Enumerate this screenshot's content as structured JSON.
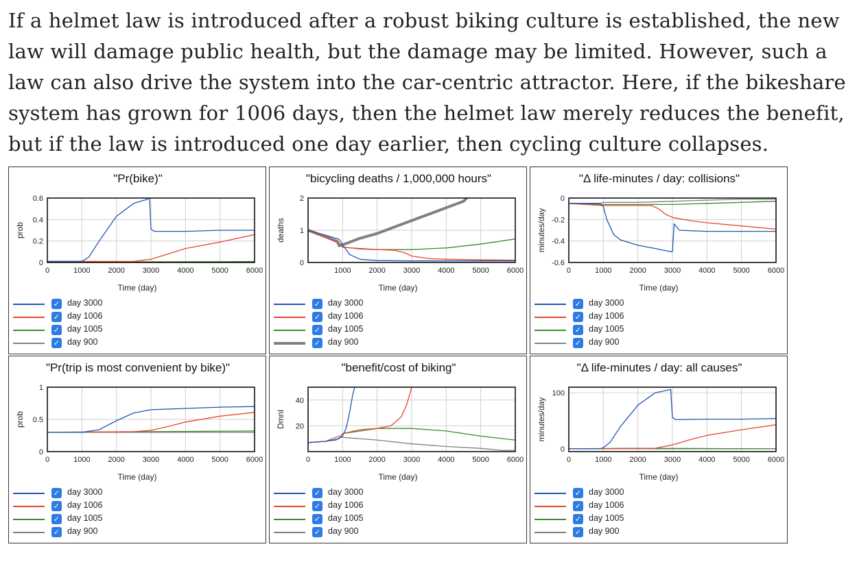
{
  "intro": {
    "lines": [
      "If a helmet law is introduced after a robust biking culture is established, the new",
      "law will damage public health, but the damage may be limited. However, such a",
      "law can also drive the system into the car-centric attractor. Here, if the bikeshare",
      "system has grown for 1006 days, then the helmet law merely reduces the benefit,",
      "but if the law is introduced one day earlier, then cycling culture collapses."
    ]
  },
  "legend": [
    {
      "label": "day 3000",
      "color": "#2255b0"
    },
    {
      "label": "day 1006",
      "color": "#e8452c"
    },
    {
      "label": "day 1005",
      "color": "#3a8a2e"
    },
    {
      "label": "day 900",
      "color": "#808080"
    }
  ],
  "checkmark": "✓",
  "chart_data": [
    {
      "type": "line",
      "title": "\"Pr(bike)\"",
      "xlabel": "Time (day)",
      "ylabel": "prob",
      "xlim": [
        0,
        6000
      ],
      "ylim": [
        0,
        0.6
      ],
      "xticks": [
        0,
        1000,
        2000,
        3000,
        4000,
        5000,
        6000
      ],
      "yticks": [
        0,
        0.2,
        0.4,
        0.6
      ],
      "ytick_labels": [
        "0",
        "0.2",
        "0.4",
        "0.6"
      ],
      "series": [
        {
          "name": "day 3000",
          "x": [
            0,
            1000,
            1200,
            1500,
            2000,
            2500,
            2900,
            2960,
            3000,
            3100,
            4000,
            5000,
            6000
          ],
          "y": [
            0.01,
            0.01,
            0.05,
            0.2,
            0.43,
            0.55,
            0.59,
            0.6,
            0.31,
            0.29,
            0.29,
            0.3,
            0.3
          ]
        },
        {
          "name": "day 1006",
          "x": [
            0,
            2500,
            3000,
            3500,
            4000,
            5000,
            6000
          ],
          "y": [
            0.01,
            0.01,
            0.03,
            0.08,
            0.13,
            0.19,
            0.26
          ]
        },
        {
          "name": "day 1005",
          "x": [
            0,
            6000
          ],
          "y": [
            0.005,
            0.008
          ]
        },
        {
          "name": "day 900",
          "x": [
            0,
            6000
          ],
          "y": [
            0.003,
            0.004
          ]
        }
      ]
    },
    {
      "type": "line",
      "title": "\"bicycling deaths / 1,000,000 hours\"",
      "xlabel": "Time (day)",
      "ylabel": "deaths",
      "xlim": [
        0,
        6000
      ],
      "ylim": [
        0,
        2
      ],
      "xticks": [
        1000,
        2000,
        3000,
        4000,
        5000,
        6000
      ],
      "yticks": [
        0,
        1,
        2
      ],
      "ytick_labels": [
        "0",
        "1",
        "2"
      ],
      "series": [
        {
          "name": "day 3000",
          "x": [
            0,
            500,
            900,
            1000,
            1200,
            1500,
            2000,
            3000,
            4000,
            6000
          ],
          "y": [
            1.0,
            0.85,
            0.72,
            0.55,
            0.25,
            0.1,
            0.06,
            0.05,
            0.05,
            0.05
          ]
        },
        {
          "name": "day 1006",
          "x": [
            0,
            900,
            1000,
            1500,
            2000,
            2500,
            2800,
            3000,
            3500,
            4000,
            5000,
            6000
          ],
          "y": [
            1.0,
            0.6,
            0.48,
            0.42,
            0.4,
            0.38,
            0.3,
            0.2,
            0.12,
            0.1,
            0.08,
            0.07
          ]
        },
        {
          "name": "day 1005",
          "x": [
            0,
            900,
            1000,
            2000,
            3000,
            4000,
            5000,
            6000
          ],
          "y": [
            1.0,
            0.6,
            0.47,
            0.4,
            0.4,
            0.45,
            0.57,
            0.73
          ]
        },
        {
          "name": "day 900",
          "x": [
            0,
            500,
            850,
            900,
            1000,
            1500,
            2000,
            2500,
            3000,
            3500,
            4000,
            4500,
            4600
          ],
          "y": [
            1.0,
            0.8,
            0.65,
            0.52,
            0.55,
            0.75,
            0.9,
            1.1,
            1.3,
            1.5,
            1.7,
            1.9,
            2.0
          ]
        }
      ]
    },
    {
      "type": "line",
      "title": "\"Δ life-minutes / day: collisions\"",
      "xlabel": "Time (day)",
      "ylabel": "minutes/day",
      "xlim": [
        0,
        6000
      ],
      "ylim": [
        -0.6,
        0
      ],
      "xticks": [
        0,
        1000,
        2000,
        3000,
        4000,
        5000,
        6000
      ],
      "yticks": [
        -0.6,
        -0.4,
        -0.2,
        0
      ],
      "ytick_labels": [
        "-0.6",
        "-0.4",
        "-0.2",
        "0"
      ],
      "series": [
        {
          "name": "day 3000",
          "x": [
            0,
            900,
            1000,
            1100,
            1300,
            1500,
            2000,
            2500,
            2950,
            3000,
            3050,
            3200,
            4000,
            5000,
            6000
          ],
          "y": [
            -0.05,
            -0.05,
            -0.08,
            -0.2,
            -0.34,
            -0.39,
            -0.44,
            -0.47,
            -0.5,
            -0.5,
            -0.24,
            -0.3,
            -0.31,
            -0.31,
            -0.31
          ]
        },
        {
          "name": "day 1006",
          "x": [
            0,
            1000,
            2400,
            2600,
            2800,
            3000,
            3500,
            4000,
            5000,
            6000
          ],
          "y": [
            -0.05,
            -0.07,
            -0.07,
            -0.1,
            -0.15,
            -0.18,
            -0.21,
            -0.23,
            -0.26,
            -0.29
          ]
        },
        {
          "name": "day 1005",
          "x": [
            0,
            1000,
            2000,
            3000,
            4000,
            5000,
            6000
          ],
          "y": [
            -0.05,
            -0.06,
            -0.06,
            -0.06,
            -0.05,
            -0.04,
            -0.03
          ]
        },
        {
          "name": "day 900",
          "x": [
            0,
            900,
            1000,
            2000,
            3000,
            4000,
            5000,
            6000
          ],
          "y": [
            -0.05,
            -0.05,
            -0.04,
            -0.04,
            -0.03,
            -0.02,
            -0.01,
            -0.01
          ]
        }
      ]
    },
    {
      "type": "line",
      "title": "\"Pr(trip is most convenient by bike)\"",
      "xlabel": "Time (day)",
      "ylabel": "prob",
      "xlim": [
        0,
        6000
      ],
      "ylim": [
        0,
        1
      ],
      "xticks": [
        0,
        1000,
        2000,
        3000,
        4000,
        5000,
        6000
      ],
      "yticks": [
        0,
        0.5,
        1
      ],
      "ytick_labels": [
        "0",
        "0.5",
        "1"
      ],
      "series": [
        {
          "name": "day 3000",
          "x": [
            0,
            1000,
            1500,
            2000,
            2500,
            3000,
            4000,
            5000,
            6000
          ],
          "y": [
            0.3,
            0.3,
            0.34,
            0.48,
            0.6,
            0.65,
            0.67,
            0.69,
            0.7
          ]
        },
        {
          "name": "day 1006",
          "x": [
            0,
            2500,
            3000,
            3500,
            4000,
            5000,
            6000
          ],
          "y": [
            0.3,
            0.31,
            0.33,
            0.39,
            0.46,
            0.55,
            0.61
          ]
        },
        {
          "name": "day 1005",
          "x": [
            0,
            6000
          ],
          "y": [
            0.3,
            0.32
          ]
        },
        {
          "name": "day 900",
          "x": [
            0,
            6000
          ],
          "y": [
            0.3,
            0.3
          ]
        }
      ]
    },
    {
      "type": "line",
      "title": "\"benefit/cost of biking\"",
      "xlabel": "Time (day)",
      "ylabel": "Dmnl",
      "xlim": [
        0,
        6000
      ],
      "ylim": [
        0,
        50
      ],
      "xticks": [
        0,
        1000,
        2000,
        3000,
        4000,
        5000,
        6000
      ],
      "yticks": [
        20,
        40
      ],
      "ytick_labels": [
        "20",
        "40"
      ],
      "series": [
        {
          "name": "day 3000",
          "x": [
            0,
            500,
            800,
            1000,
            1100,
            1200,
            1300,
            1350
          ],
          "y": [
            7,
            8,
            9,
            12,
            18,
            30,
            45,
            50
          ]
        },
        {
          "name": "day 1006",
          "x": [
            0,
            500,
            900,
            1000,
            1500,
            2000,
            2400,
            2700,
            2850,
            2950,
            3000
          ],
          "y": [
            7,
            8,
            10,
            14,
            17,
            18,
            20,
            27,
            36,
            45,
            50
          ]
        },
        {
          "name": "day 1005",
          "x": [
            0,
            500,
            900,
            1000,
            2000,
            3000,
            4000,
            5000,
            6000
          ],
          "y": [
            7,
            8,
            10,
            14,
            18,
            18,
            16,
            12,
            9
          ]
        },
        {
          "name": "day 900",
          "x": [
            0,
            500,
            900,
            1000,
            2000,
            3000,
            4000,
            5000,
            5600,
            6000
          ],
          "y": [
            7,
            8,
            12,
            11,
            9,
            6,
            4,
            2.5,
            1,
            1
          ]
        }
      ]
    },
    {
      "type": "line",
      "title": "\"Δ life-minutes / day: all causes\"",
      "xlabel": "Time (day)",
      "ylabel": "minutes/day",
      "xlim": [
        0,
        6000
      ],
      "ylim": [
        -5,
        110
      ],
      "xticks": [
        0,
        1000,
        2000,
        3000,
        4000,
        5000,
        6000
      ],
      "yticks": [
        0,
        100
      ],
      "ytick_labels": [
        "0",
        "100"
      ],
      "series": [
        {
          "name": "day 3000",
          "x": [
            0,
            900,
            1000,
            1200,
            1500,
            2000,
            2500,
            2950,
            3000,
            3100,
            4000,
            5000,
            6000
          ],
          "y": [
            0,
            0,
            2,
            12,
            40,
            78,
            100,
            106,
            56,
            52,
            53,
            53,
            54
          ]
        },
        {
          "name": "day 1006",
          "x": [
            0,
            2500,
            3000,
            3500,
            4000,
            5000,
            6000
          ],
          "y": [
            0,
            1,
            7,
            16,
            24,
            34,
            43
          ]
        },
        {
          "name": "day 1005",
          "x": [
            0,
            2000,
            4000,
            6000
          ],
          "y": [
            0,
            1,
            0.5,
            0
          ]
        },
        {
          "name": "day 900",
          "x": [
            0,
            6000
          ],
          "y": [
            0,
            0
          ]
        }
      ]
    }
  ]
}
